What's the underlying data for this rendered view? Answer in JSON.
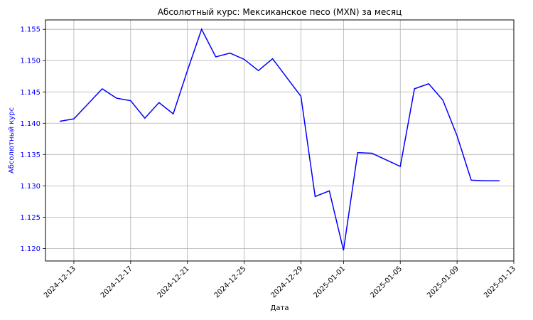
{
  "colors": {
    "line": "#0000ff",
    "y_axis_text": "#0000ff",
    "grid": "#b0b0b0",
    "axes": "#000000",
    "background": "#ffffff"
  },
  "chart_data": {
    "type": "line",
    "title": "Абсолютный курс: Мексиканское песо (MXN) за месяц",
    "xlabel": "Дата",
    "ylabel": "Абсолютный курс",
    "grid": true,
    "legend": "none",
    "xlim": [
      "2024-12-11",
      "2025-01-13"
    ],
    "ylim": [
      1.118,
      1.1565
    ],
    "x_ticks": [
      "2024-12-13",
      "2024-12-17",
      "2024-12-21",
      "2024-12-25",
      "2024-12-29",
      "2025-01-01",
      "2025-01-05",
      "2025-01-09",
      "2025-01-13"
    ],
    "y_ticks": [
      "1.120",
      "1.125",
      "1.130",
      "1.135",
      "1.140",
      "1.145",
      "1.150",
      "1.155"
    ],
    "series": [
      {
        "x": [
          "2024-12-12",
          "2024-12-13",
          "2024-12-15",
          "2024-12-16",
          "2024-12-17",
          "2024-12-18",
          "2024-12-19",
          "2024-12-20",
          "2024-12-21",
          "2024-12-22",
          "2024-12-23",
          "2024-12-24",
          "2024-12-25",
          "2024-12-26",
          "2024-12-27",
          "2024-12-29",
          "2024-12-30",
          "2024-12-31",
          "2025-01-01",
          "2025-01-02",
          "2025-01-03",
          "2025-01-05",
          "2025-01-06",
          "2025-01-07",
          "2025-01-08",
          "2025-01-09",
          "2025-01-10",
          "2025-01-11",
          "2025-01-12"
        ],
        "y": [
          1.1403,
          1.1407,
          1.1455,
          1.144,
          1.1436,
          1.1408,
          1.1433,
          1.1415,
          1.1484,
          1.155,
          1.1506,
          1.1512,
          1.1502,
          1.1484,
          1.1503,
          1.1443,
          1.1283,
          1.1292,
          1.1197,
          1.1353,
          1.1352,
          1.1331,
          1.1455,
          1.1463,
          1.1437,
          1.138,
          1.1309,
          1.1308,
          1.1308
        ]
      }
    ]
  }
}
